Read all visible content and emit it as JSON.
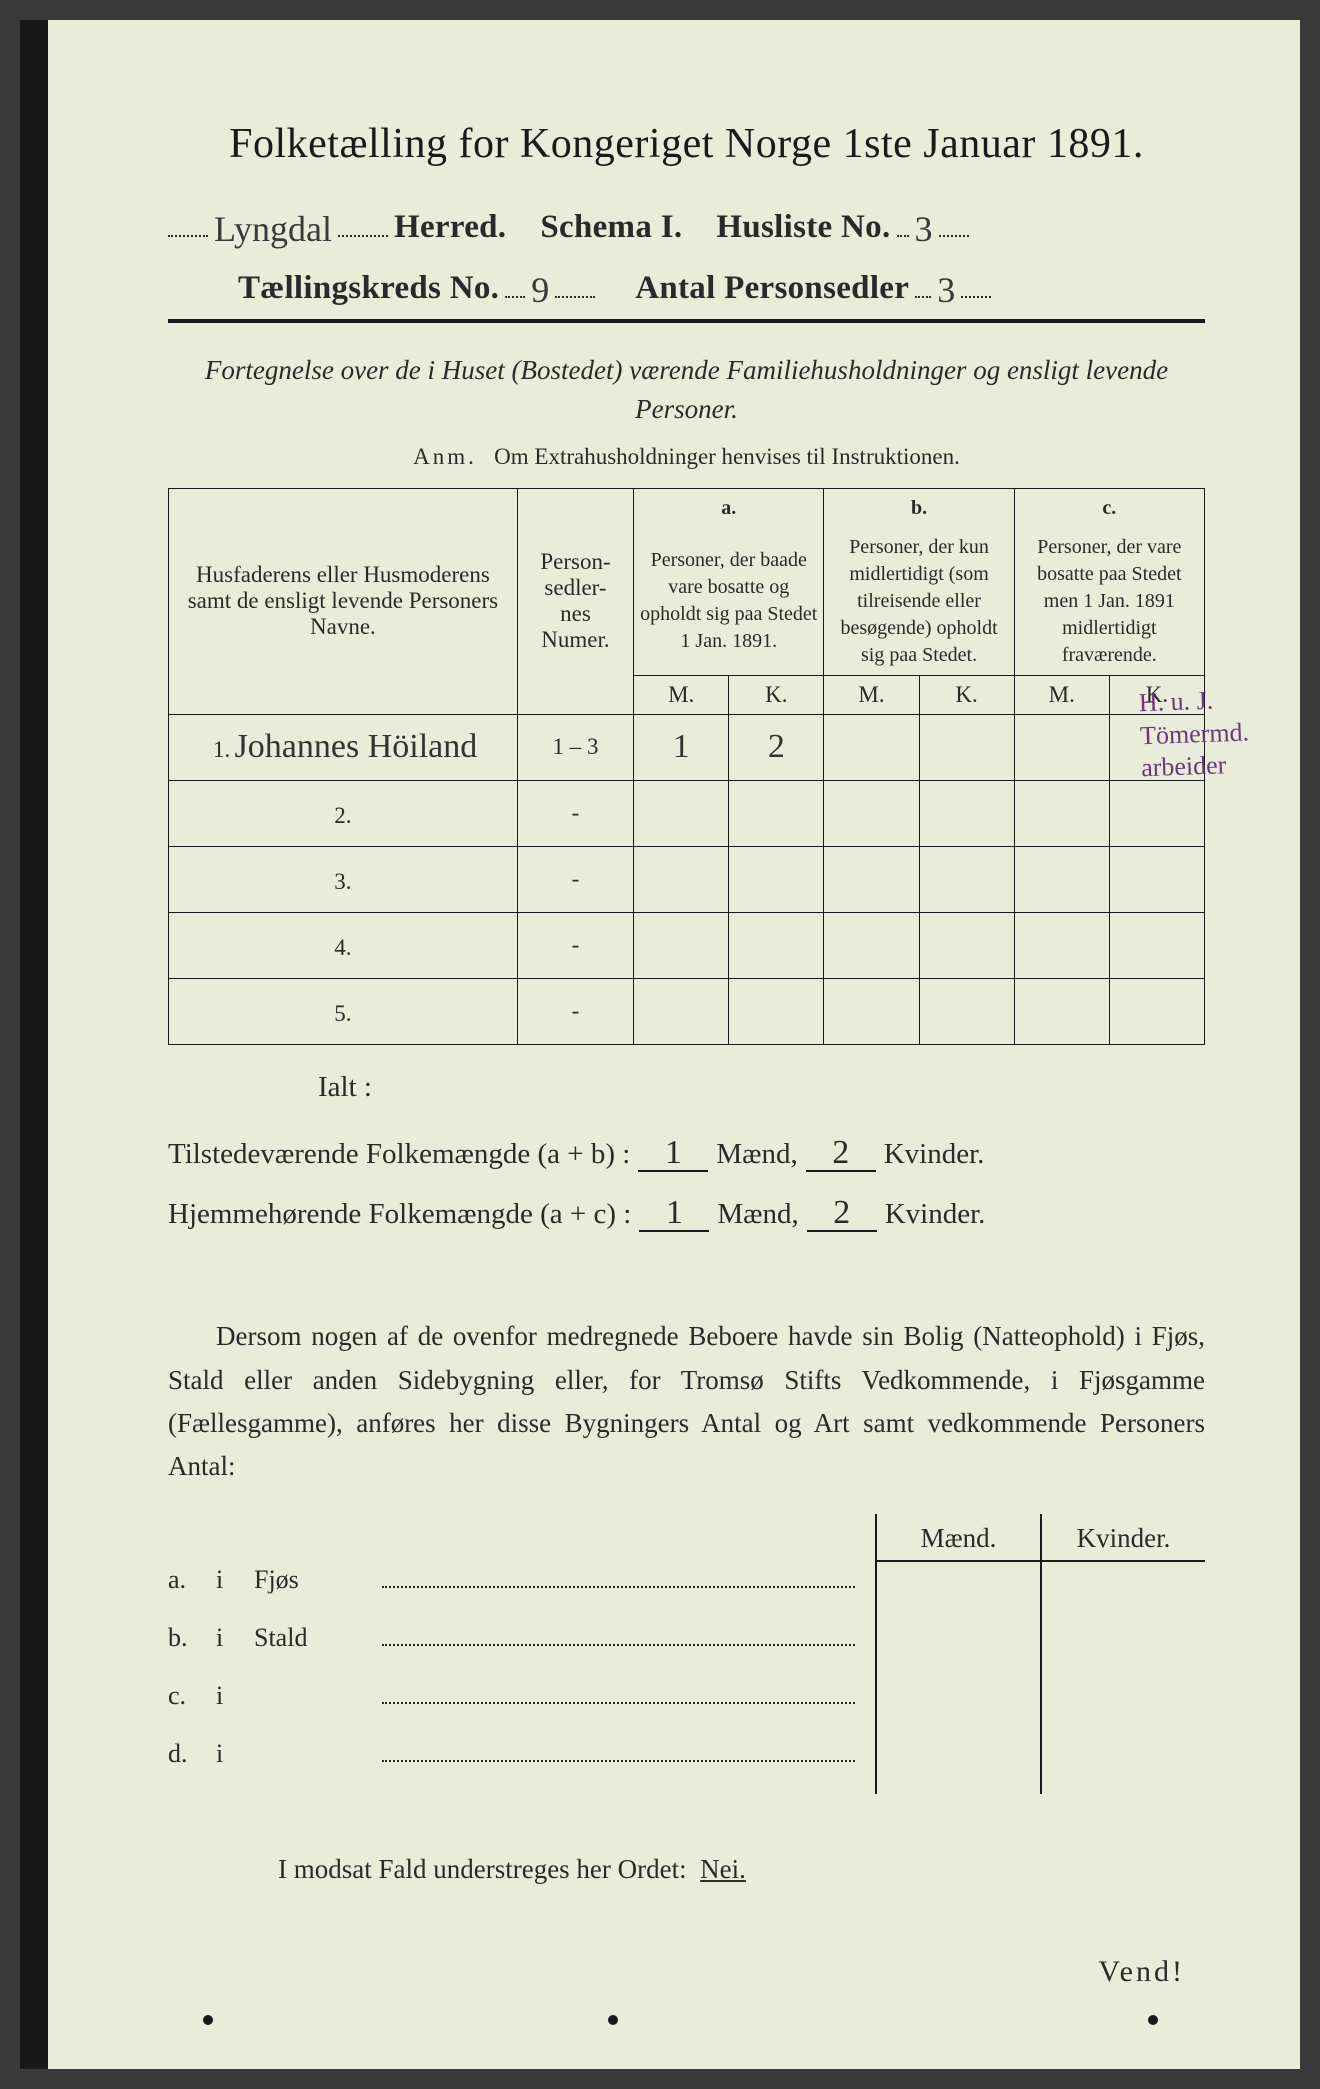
{
  "colors": {
    "page_bg": "#e8ecd8",
    "text": "#2a2a2a",
    "frame": "#181818",
    "margin_note": "#6a3a7a"
  },
  "typography": {
    "title_pt": 42,
    "body_pt": 27,
    "small_pt": 23,
    "hand_pt": 34
  },
  "title": "Folketælling for Kongeriget Norge 1ste Januar 1891.",
  "header": {
    "herred_value": "Lyngdal",
    "herred_label": "Herred.",
    "schema_label": "Schema I.",
    "husliste_label": "Husliste No.",
    "husliste_value": "3",
    "kreds_label": "Tællingskreds No.",
    "kreds_value": "9",
    "antal_label": "Antal Personsedler",
    "antal_value": "3"
  },
  "subtitle": "Fortegnelse over de i Huset (Bostedet) værende Familiehusholdninger og ensligt levende Personer.",
  "anm_label": "Anm.",
  "anm_text": "Om Extrahusholdninger henvises til Instruktionen.",
  "table": {
    "col_name": "Husfaderens eller Husmoderens samt de ensligt levende Personers Navne.",
    "col_num": "Person-\nsedler-\nnes\nNumer.",
    "a_label": "a.",
    "a_text": "Personer, der baade vare bosatte og opholdt sig paa Stedet 1 Jan. 1891.",
    "b_label": "b.",
    "b_text": "Personer, der kun midlertidigt (som tilreisende eller besøgende) opholdt sig paa Stedet.",
    "c_label": "c.",
    "c_text": "Personer, der vare bosatte paa Stedet men 1 Jan. 1891 midlertidigt fraværende.",
    "M": "M.",
    "K": "K.",
    "rows": [
      {
        "n": "1.",
        "name": "Johannes Höiland",
        "num": "1 – 3",
        "aM": "1",
        "aK": "2",
        "bM": "",
        "bK": "",
        "cM": "",
        "cK": ""
      },
      {
        "n": "2.",
        "name": "",
        "num": "-",
        "aM": "",
        "aK": "",
        "bM": "",
        "bK": "",
        "cM": "",
        "cK": ""
      },
      {
        "n": "3.",
        "name": "",
        "num": "-",
        "aM": "",
        "aK": "",
        "bM": "",
        "bK": "",
        "cM": "",
        "cK": ""
      },
      {
        "n": "4.",
        "name": "",
        "num": "-",
        "aM": "",
        "aK": "",
        "bM": "",
        "bK": "",
        "cM": "",
        "cK": ""
      },
      {
        "n": "5.",
        "name": "",
        "num": "-",
        "aM": "",
        "aK": "",
        "bM": "",
        "bK": "",
        "cM": "",
        "cK": ""
      }
    ],
    "margin_note": "H. u. J.\nTömermd.\narbeider"
  },
  "ialt": {
    "label": "Ialt :",
    "row1_label": "Tilstedeværende Folkemængde (a + b) :",
    "row2_label": "Hjemmehørende Folkemængde (a + c) :",
    "maend": "Mænd,",
    "kvinder": "Kvinder.",
    "r1_m": "1",
    "r1_k": "2",
    "r2_m": "1",
    "r2_k": "2"
  },
  "dersom": "Dersom nogen af de ovenfor medregnede Beboere havde sin Bolig (Natteophold) i Fjøs, Stald eller anden Sidebygning eller, for Tromsø Stifts Vedkommende, i Fjøsgamme (Fællesgamme), anføres her disse Bygningers Antal og Art samt vedkommende Personers Antal:",
  "sub": {
    "maend": "Mænd.",
    "kvinder": "Kvinder.",
    "rows": [
      {
        "k": "a.",
        "i": "i",
        "label": "Fjøs"
      },
      {
        "k": "b.",
        "i": "i",
        "label": "Stald"
      },
      {
        "k": "c.",
        "i": "i",
        "label": ""
      },
      {
        "k": "d.",
        "i": "i",
        "label": ""
      }
    ]
  },
  "nei_line": "I modsat Fald understreges her Ordet:",
  "nei_word": "Nei.",
  "vend": "Vend!"
}
